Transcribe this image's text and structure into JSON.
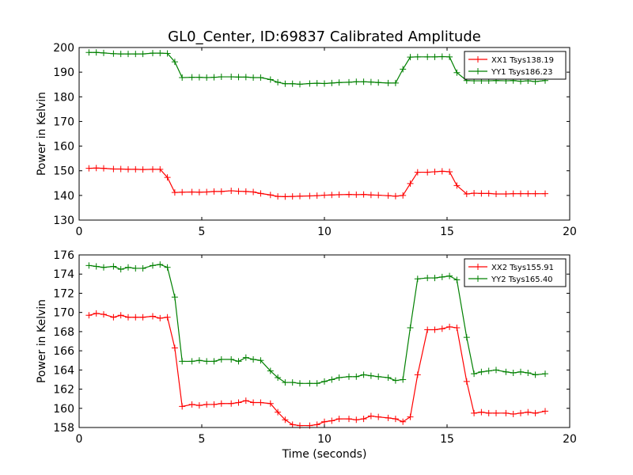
{
  "figure": {
    "title": "GL0_Center, ID:69837 Calibrated Amplitude",
    "xlabel": "Time (seconds)"
  },
  "chart_data": [
    {
      "type": "line",
      "title": "GL0_Center, ID:69837 Calibrated Amplitude",
      "xlabel": "",
      "ylabel": "Power in Kelvin",
      "xlim": [
        0,
        20
      ],
      "ylim": [
        130,
        200
      ],
      "xticks": [
        0,
        5,
        10,
        15,
        20
      ],
      "yticks": [
        130,
        140,
        150,
        160,
        170,
        180,
        190,
        200
      ],
      "grid": false,
      "legend_position": "top-right",
      "x": [
        0.4,
        0.7,
        1.0,
        1.4,
        1.7,
        2.0,
        2.3,
        2.6,
        3.0,
        3.3,
        3.6,
        3.9,
        4.2,
        4.6,
        4.9,
        5.2,
        5.5,
        5.8,
        6.2,
        6.5,
        6.8,
        7.1,
        7.4,
        7.8,
        8.1,
        8.4,
        8.7,
        9.0,
        9.4,
        9.7,
        10.0,
        10.3,
        10.6,
        11.0,
        11.3,
        11.6,
        11.9,
        12.2,
        12.6,
        12.9,
        13.2,
        13.5,
        13.8,
        14.2,
        14.5,
        14.8,
        15.1,
        15.4,
        15.8,
        16.1,
        16.4,
        16.7,
        17.0,
        17.4,
        17.7,
        18.0,
        18.3,
        18.6,
        19.0
      ],
      "series": [
        {
          "name": "XX1 Tsys138.19",
          "color": "#ff0000",
          "values": [
            151.0,
            151.1,
            151.0,
            150.7,
            150.7,
            150.6,
            150.6,
            150.5,
            150.6,
            150.6,
            147.3,
            141.2,
            141.3,
            141.4,
            141.3,
            141.4,
            141.6,
            141.6,
            141.9,
            141.7,
            141.6,
            141.4,
            140.8,
            140.2,
            139.6,
            139.5,
            139.6,
            139.7,
            139.8,
            139.9,
            140.1,
            140.2,
            140.3,
            140.4,
            140.3,
            140.4,
            140.2,
            140.1,
            139.9,
            139.7,
            140.0,
            144.8,
            149.4,
            149.4,
            149.6,
            149.8,
            149.6,
            144.0,
            140.6,
            140.9,
            140.8,
            140.8,
            140.6,
            140.6,
            140.7,
            140.7,
            140.7,
            140.7,
            140.7
          ]
        },
        {
          "name": "YY1 Tsys186.23",
          "color": "#008000",
          "values": [
            198.0,
            198.0,
            197.8,
            197.5,
            197.4,
            197.4,
            197.4,
            197.4,
            197.7,
            197.7,
            197.6,
            194.2,
            187.8,
            187.9,
            187.9,
            187.8,
            187.9,
            188.1,
            188.1,
            188.0,
            188.0,
            187.8,
            187.8,
            187.0,
            185.9,
            185.3,
            185.3,
            185.1,
            185.4,
            185.5,
            185.4,
            185.6,
            185.8,
            185.9,
            186.1,
            186.1,
            186.0,
            185.8,
            185.6,
            185.6,
            191.2,
            196.1,
            196.2,
            196.2,
            196.2,
            196.3,
            196.2,
            189.8,
            186.6,
            186.5,
            186.5,
            186.5,
            186.6,
            186.5,
            186.6,
            186.3,
            186.5,
            186.2,
            186.6
          ]
        }
      ]
    },
    {
      "type": "line",
      "title": "",
      "xlabel": "Time (seconds)",
      "ylabel": "Power in Kelvin",
      "xlim": [
        0,
        20
      ],
      "ylim": [
        158,
        176
      ],
      "xticks": [
        0,
        5,
        10,
        15,
        20
      ],
      "yticks": [
        158,
        160,
        162,
        164,
        166,
        168,
        170,
        172,
        174,
        176
      ],
      "grid": false,
      "legend_position": "top-right",
      "x": [
        0.4,
        0.7,
        1.0,
        1.4,
        1.7,
        2.0,
        2.3,
        2.6,
        3.0,
        3.3,
        3.6,
        3.9,
        4.2,
        4.6,
        4.9,
        5.2,
        5.5,
        5.8,
        6.2,
        6.5,
        6.8,
        7.1,
        7.4,
        7.8,
        8.1,
        8.4,
        8.7,
        9.0,
        9.4,
        9.7,
        10.0,
        10.3,
        10.6,
        11.0,
        11.3,
        11.6,
        11.9,
        12.2,
        12.6,
        12.9,
        13.2,
        13.5,
        13.8,
        14.2,
        14.5,
        14.8,
        15.1,
        15.4,
        15.8,
        16.1,
        16.4,
        16.7,
        17.0,
        17.4,
        17.7,
        18.0,
        18.3,
        18.6,
        19.0
      ],
      "series": [
        {
          "name": "XX2 Tsys155.91",
          "color": "#ff0000",
          "values": [
            169.7,
            169.9,
            169.8,
            169.5,
            169.7,
            169.5,
            169.5,
            169.5,
            169.6,
            169.4,
            169.5,
            166.3,
            160.2,
            160.4,
            160.3,
            160.4,
            160.4,
            160.5,
            160.5,
            160.6,
            160.8,
            160.6,
            160.6,
            160.5,
            159.6,
            158.8,
            158.3,
            158.2,
            158.2,
            158.3,
            158.6,
            158.7,
            158.9,
            158.9,
            158.8,
            158.9,
            159.2,
            159.1,
            159.0,
            158.9,
            158.6,
            159.1,
            163.5,
            168.2,
            168.2,
            168.3,
            168.5,
            168.4,
            162.8,
            159.5,
            159.6,
            159.5,
            159.5,
            159.5,
            159.4,
            159.5,
            159.6,
            159.5,
            159.7
          ]
        },
        {
          "name": "YY2 Tsys165.40",
          "color": "#008000",
          "values": [
            174.9,
            174.8,
            174.7,
            174.8,
            174.5,
            174.7,
            174.6,
            174.6,
            174.9,
            175.0,
            174.7,
            171.6,
            164.9,
            164.9,
            165.0,
            164.9,
            164.9,
            165.1,
            165.1,
            164.9,
            165.3,
            165.1,
            165.0,
            163.9,
            163.2,
            162.7,
            162.7,
            162.6,
            162.6,
            162.6,
            162.8,
            163.0,
            163.2,
            163.3,
            163.3,
            163.5,
            163.4,
            163.3,
            163.2,
            162.9,
            163.0,
            168.4,
            173.5,
            173.6,
            173.6,
            173.7,
            173.8,
            173.4,
            167.4,
            163.6,
            163.8,
            163.9,
            164.0,
            163.8,
            163.7,
            163.8,
            163.7,
            163.5,
            163.6
          ]
        }
      ]
    }
  ]
}
